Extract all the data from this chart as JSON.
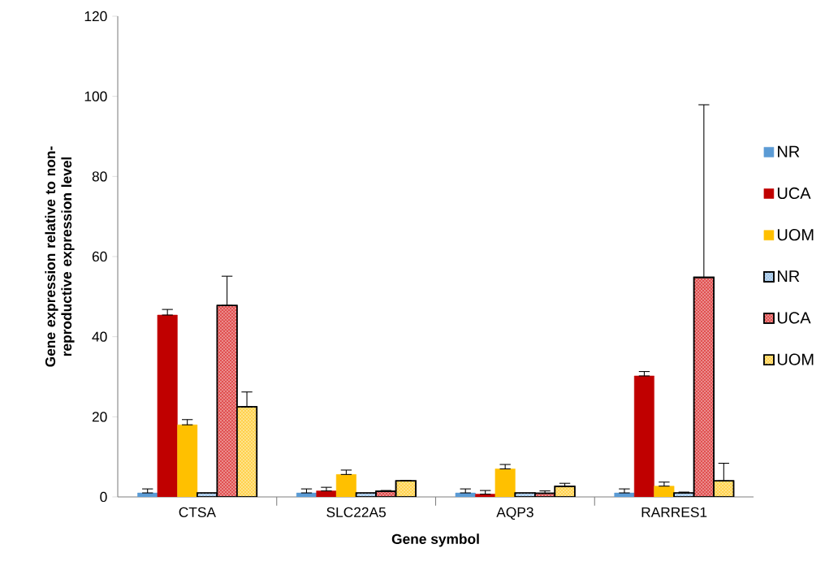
{
  "chart_data": {
    "type": "bar",
    "xlabel": "Gene symbol",
    "ylabel": "Gene expression relative to non-reproductive expression level",
    "categories": [
      "CTSA",
      "SLC22A5",
      "AQP3",
      "RARRES1"
    ],
    "series": [
      {
        "name": "NR",
        "color": "#5b9bd5",
        "values": [
          1,
          1,
          1,
          1
        ],
        "errors": [
          [
            1,
            2
          ],
          [
            1,
            2
          ],
          [
            1,
            2
          ],
          [
            1,
            2
          ]
        ]
      },
      {
        "name": "UCA",
        "color": "#c00000",
        "values": [
          45.4,
          1.5,
          0.7,
          30.2
        ],
        "errors": [
          [
            45.4,
            46.8
          ],
          [
            1.5,
            2.4
          ],
          [
            0.7,
            1.6
          ],
          [
            30.2,
            31.3
          ]
        ]
      },
      {
        "name": "UOM",
        "color": "#ffc000",
        "values": [
          18,
          5.6,
          7,
          2.7
        ],
        "errors": [
          [
            18,
            19.3
          ],
          [
            5.6,
            6.7
          ],
          [
            7,
            8.1
          ],
          [
            2.7,
            3.7
          ]
        ]
      },
      {
        "name": "NR",
        "color": "#9dc3e6",
        "values": [
          1,
          1,
          1,
          1
        ],
        "errors": [
          null,
          null,
          null,
          [
            1,
            1.2
          ]
        ]
      },
      {
        "name": "UCA",
        "color": "#e05050",
        "values": [
          47.8,
          1.4,
          0.9,
          54.8
        ],
        "errors": [
          [
            47.8,
            55.1
          ],
          [
            1.4,
            1.6
          ],
          [
            0.9,
            1.5
          ],
          [
            54.8,
            97.9
          ]
        ]
      },
      {
        "name": "UOM",
        "color": "#ffd24d",
        "values": [
          22.5,
          4,
          2.6,
          4
        ],
        "errors": [
          [
            22.5,
            26.2
          ],
          [
            4,
            4.1
          ],
          [
            2.6,
            3.4
          ],
          [
            4,
            8.4
          ]
        ]
      }
    ],
    "ylim": [
      0,
      120
    ],
    "yticks": [
      0,
      20,
      40,
      60,
      80,
      100,
      120
    ],
    "grid": false,
    "legend": "right"
  }
}
